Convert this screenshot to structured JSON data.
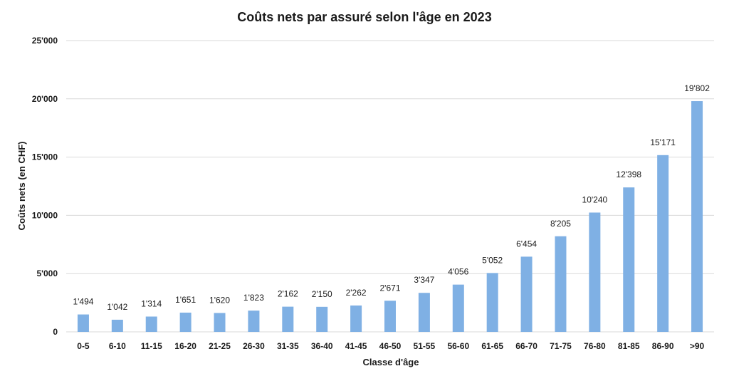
{
  "chart_data": {
    "type": "bar",
    "title": "Coûts nets par assuré selon l'âge en 2023",
    "xlabel": "Classe d'âge",
    "ylabel": "Coûts nets (en CHF)",
    "ylim": [
      0,
      25000
    ],
    "yticks": [
      0,
      5000,
      10000,
      15000,
      20000,
      25000
    ],
    "ytick_labels": [
      "0",
      "5'000",
      "10'000",
      "15'000",
      "20'000",
      "25'000"
    ],
    "grid": true,
    "legend": "none",
    "categories": [
      "0-5",
      "6-10",
      "11-15",
      "16-20",
      "21-25",
      "26-30",
      "31-35",
      "36-40",
      "41-45",
      "46-50",
      "51-55",
      "56-60",
      "61-65",
      "66-70",
      "71-75",
      "76-80",
      "81-85",
      "86-90",
      ">90"
    ],
    "values": [
      1494,
      1042,
      1314,
      1651,
      1620,
      1823,
      2162,
      2150,
      2262,
      2671,
      3347,
      4056,
      5052,
      6454,
      8205,
      10240,
      12398,
      15171,
      19802
    ],
    "value_labels": [
      "1'494",
      "1'042",
      "1'314",
      "1'651",
      "1'620",
      "1'823",
      "2'162",
      "2'150",
      "2'262",
      "2'671",
      "3'347",
      "4'056",
      "5'052",
      "6'454",
      "8'205",
      "10'240",
      "12'398",
      "15'171",
      "19'802"
    ],
    "bar_color": "#7fb0e4"
  }
}
